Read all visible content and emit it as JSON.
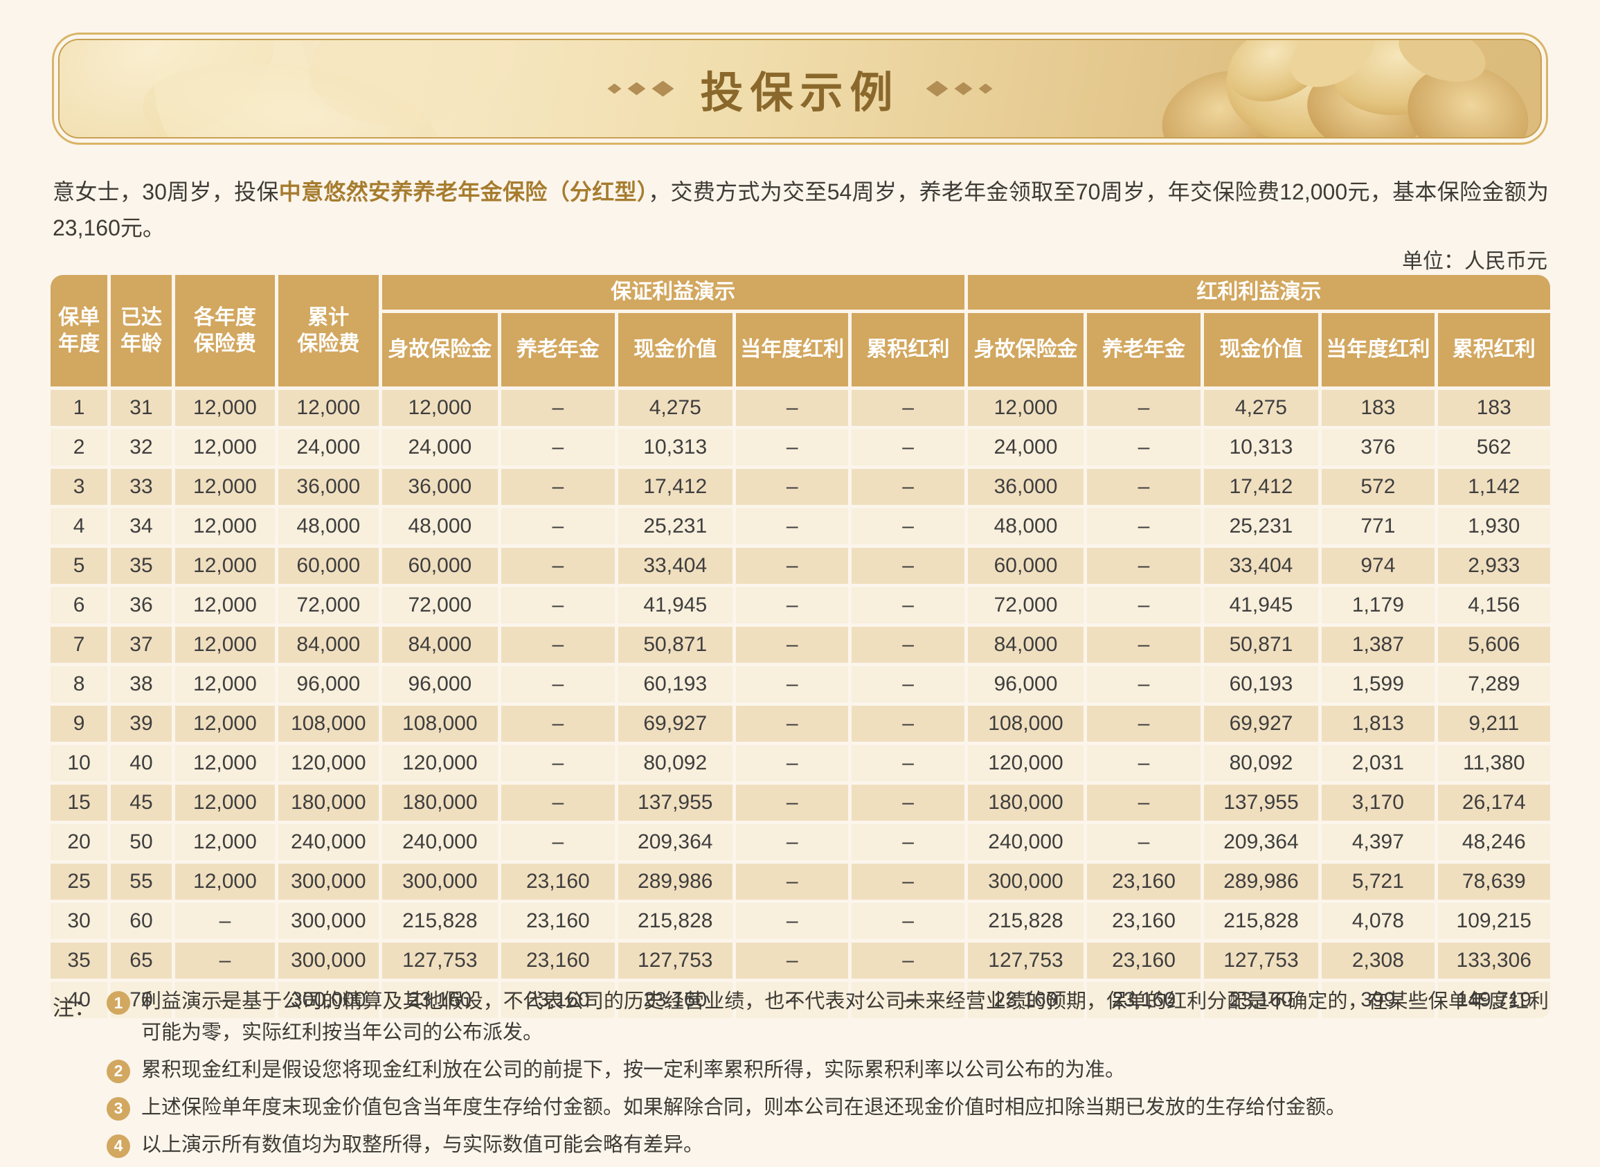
{
  "banner": {
    "title": "投保示例"
  },
  "intro": {
    "prefix": "意女士，30周岁，投保",
    "product": "中意悠然安养养老年金保险（分红型）",
    "suffix": "，交费方式为交至54周岁，养老年金领取至70周岁，年交保险费12,000元，基本保险金额为23,160元。"
  },
  "unit_label": "单位：人民币元",
  "table": {
    "header": {
      "policy_year": "保单\n年度",
      "attained_age": "已达\n年龄",
      "annual_premium": "各年度\n保险费",
      "cumulative_premium": "累计\n保险费",
      "guaranteed_group": "保证利益演示",
      "dividend_group": "红利利益演示",
      "sub": [
        "身故保险金",
        "养老年金",
        "现金价值",
        "当年度红利",
        "累积红利"
      ]
    },
    "rows": [
      [
        "1",
        "31",
        "12,000",
        "12,000",
        "12,000",
        "–",
        "4,275",
        "–",
        "–",
        "12,000",
        "–",
        "4,275",
        "183",
        "183"
      ],
      [
        "2",
        "32",
        "12,000",
        "24,000",
        "24,000",
        "–",
        "10,313",
        "–",
        "–",
        "24,000",
        "–",
        "10,313",
        "376",
        "562"
      ],
      [
        "3",
        "33",
        "12,000",
        "36,000",
        "36,000",
        "–",
        "17,412",
        "–",
        "–",
        "36,000",
        "–",
        "17,412",
        "572",
        "1,142"
      ],
      [
        "4",
        "34",
        "12,000",
        "48,000",
        "48,000",
        "–",
        "25,231",
        "–",
        "–",
        "48,000",
        "–",
        "25,231",
        "771",
        "1,930"
      ],
      [
        "5",
        "35",
        "12,000",
        "60,000",
        "60,000",
        "–",
        "33,404",
        "–",
        "–",
        "60,000",
        "–",
        "33,404",
        "974",
        "2,933"
      ],
      [
        "6",
        "36",
        "12,000",
        "72,000",
        "72,000",
        "–",
        "41,945",
        "–",
        "–",
        "72,000",
        "–",
        "41,945",
        "1,179",
        "4,156"
      ],
      [
        "7",
        "37",
        "12,000",
        "84,000",
        "84,000",
        "–",
        "50,871",
        "–",
        "–",
        "84,000",
        "–",
        "50,871",
        "1,387",
        "5,606"
      ],
      [
        "8",
        "38",
        "12,000",
        "96,000",
        "96,000",
        "–",
        "60,193",
        "–",
        "–",
        "96,000",
        "–",
        "60,193",
        "1,599",
        "7,289"
      ],
      [
        "9",
        "39",
        "12,000",
        "108,000",
        "108,000",
        "–",
        "69,927",
        "–",
        "–",
        "108,000",
        "–",
        "69,927",
        "1,813",
        "9,211"
      ],
      [
        "10",
        "40",
        "12,000",
        "120,000",
        "120,000",
        "–",
        "80,092",
        "–",
        "–",
        "120,000",
        "–",
        "80,092",
        "2,031",
        "11,380"
      ],
      [
        "15",
        "45",
        "12,000",
        "180,000",
        "180,000",
        "–",
        "137,955",
        "–",
        "–",
        "180,000",
        "–",
        "137,955",
        "3,170",
        "26,174"
      ],
      [
        "20",
        "50",
        "12,000",
        "240,000",
        "240,000",
        "–",
        "209,364",
        "–",
        "–",
        "240,000",
        "–",
        "209,364",
        "4,397",
        "48,246"
      ],
      [
        "25",
        "55",
        "12,000",
        "300,000",
        "300,000",
        "23,160",
        "289,986",
        "–",
        "–",
        "300,000",
        "23,160",
        "289,986",
        "5,721",
        "78,639"
      ],
      [
        "30",
        "60",
        "–",
        "300,000",
        "215,828",
        "23,160",
        "215,828",
        "–",
        "–",
        "215,828",
        "23,160",
        "215,828",
        "4,078",
        "109,215"
      ],
      [
        "35",
        "65",
        "–",
        "300,000",
        "127,753",
        "23,160",
        "127,753",
        "–",
        "–",
        "127,753",
        "23,160",
        "127,753",
        "2,308",
        "133,306"
      ],
      [
        "40",
        "70",
        "–",
        "300,000",
        "23,160",
        "23,160",
        "23,160",
        "–",
        "–",
        "23,160",
        "23,160",
        "23,160",
        "399",
        "149,719"
      ]
    ]
  },
  "notes": {
    "label": "注：",
    "items": [
      {
        "num": "1",
        "text": "利益演示是基于公司的精算及其他假设，不代表公司的历史经营业绩，也不代表对公司未来经营业绩的预期，保单的红利分配是不确定的，在某些保单年度红利可能为零，实际红利按当年公司的公布派发。"
      },
      {
        "num": "2",
        "text": "累积现金红利是假设您将现金红利放在公司的前提下，按一定利率累积所得，实际累积利率以公司公布的为准。"
      },
      {
        "num": "3",
        "text": "上述保险单年度末现金价值包含当年度生存给付金额。如果解除合同，则本公司在退还现金价值时相应扣除当期已发放的生存给付金额。"
      },
      {
        "num": "4",
        "text": "以上演示所有数值均为取整所得，与实际数值可能会略有差异。"
      }
    ]
  },
  "colors": {
    "page_background": "#FBF5EC",
    "header_fill": "#D2A75F",
    "row_dark": "#F0DFBF",
    "row_light": "#F8EFDC",
    "title_text": "#8A682C",
    "product_text": "#A67C2E",
    "banner_border": "#C8A151"
  }
}
